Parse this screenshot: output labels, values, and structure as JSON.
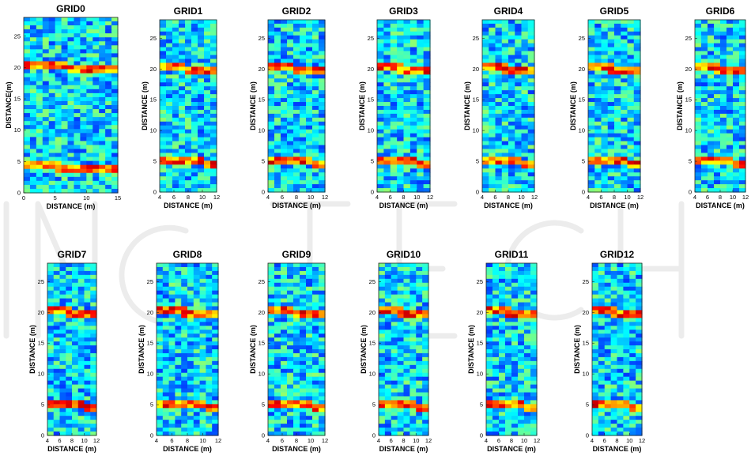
{
  "chart_data": [
    {
      "type": "heatmap",
      "title": "GRID0",
      "xlabel": "DISTANCE (m)",
      "ylabel": "DISTANCE(m)",
      "xlim": [
        0,
        15
      ],
      "ylim": [
        0,
        28
      ],
      "xticks": [
        "0",
        "5",
        "10",
        "15"
      ],
      "yticks": [
        "0",
        "5",
        "10",
        "15",
        "20",
        "25"
      ],
      "reflector_depths_m": [
        20,
        4
      ],
      "colormap": "jet"
    },
    {
      "type": "heatmap",
      "title": "GRID1",
      "xlabel": "DISTANCE (m)",
      "ylabel": "DISTANCE (m)",
      "xlim": [
        4,
        12
      ],
      "ylim": [
        0,
        28
      ],
      "xticks": [
        "4",
        "6",
        "8",
        "10",
        "12"
      ],
      "yticks": [
        "0",
        "5",
        "10",
        "15",
        "20",
        "25"
      ],
      "reflector_depths_m": [
        20,
        5
      ],
      "colormap": "jet"
    },
    {
      "type": "heatmap",
      "title": "GRID2",
      "xlabel": "DISTANCE (m)",
      "ylabel": "DISTANCE (m)",
      "xlim": [
        4,
        12
      ],
      "ylim": [
        0,
        28
      ],
      "xticks": [
        "4",
        "6",
        "8",
        "10",
        "12"
      ],
      "yticks": [
        "0",
        "5",
        "10",
        "15",
        "20",
        "25"
      ],
      "reflector_depths_m": [
        20,
        5
      ],
      "colormap": "jet"
    },
    {
      "type": "heatmap",
      "title": "GRID3",
      "xlabel": "DISTANCE (m)",
      "ylabel": "DISTANCE (m)",
      "xlim": [
        4,
        12
      ],
      "ylim": [
        0,
        28
      ],
      "xticks": [
        "4",
        "6",
        "8",
        "10",
        "12"
      ],
      "yticks": [
        "0",
        "5",
        "10",
        "15",
        "20",
        "25"
      ],
      "reflector_depths_m": [
        20,
        5
      ],
      "colormap": "jet"
    },
    {
      "type": "heatmap",
      "title": "GRID4",
      "xlabel": "DISTANCE (m)",
      "ylabel": "DISTANCE (m)",
      "xlim": [
        4,
        12
      ],
      "ylim": [
        0,
        28
      ],
      "xticks": [
        "4",
        "6",
        "8",
        "10",
        "12"
      ],
      "yticks": [
        "0",
        "5",
        "10",
        "15",
        "20",
        "25"
      ],
      "reflector_depths_m": [
        20,
        5
      ],
      "colormap": "jet"
    },
    {
      "type": "heatmap",
      "title": "GRID5",
      "xlabel": "DISTANCE (m)",
      "ylabel": "DISTANCE (m)",
      "xlim": [
        4,
        12
      ],
      "ylim": [
        0,
        28
      ],
      "xticks": [
        "4",
        "6",
        "8",
        "10",
        "12"
      ],
      "yticks": [
        "0",
        "5",
        "10",
        "15",
        "20",
        "25"
      ],
      "reflector_depths_m": [
        20,
        5
      ],
      "colormap": "jet"
    },
    {
      "type": "heatmap",
      "title": "GRID6",
      "xlabel": "DISTANCE (m)",
      "ylabel": "DISTANCE (m)",
      "xlim": [
        4,
        12
      ],
      "ylim": [
        0,
        28
      ],
      "xticks": [
        "4",
        "6",
        "8",
        "10",
        "12"
      ],
      "yticks": [
        "0",
        "5",
        "10",
        "15",
        "20",
        "25"
      ],
      "reflector_depths_m": [
        20,
        5
      ],
      "colormap": "jet"
    },
    {
      "type": "heatmap",
      "title": "GRID7",
      "xlabel": "DISTANCE (m)",
      "ylabel": "DISTANCE (m)",
      "xlim": [
        4,
        12
      ],
      "ylim": [
        0,
        28
      ],
      "xticks": [
        "4",
        "6",
        "8",
        "10",
        "12"
      ],
      "yticks": [
        "0",
        "5",
        "10",
        "15",
        "20",
        "25"
      ],
      "reflector_depths_m": [
        20,
        5
      ],
      "colormap": "jet"
    },
    {
      "type": "heatmap",
      "title": "GRID8",
      "xlabel": "DISTANCE (m)",
      "ylabel": "DISTANCE (m)",
      "xlim": [
        4,
        12
      ],
      "ylim": [
        0,
        28
      ],
      "xticks": [
        "4",
        "6",
        "8",
        "10",
        "12"
      ],
      "yticks": [
        "0",
        "5",
        "10",
        "15",
        "20",
        "25"
      ],
      "reflector_depths_m": [
        20,
        5
      ],
      "colormap": "jet"
    },
    {
      "type": "heatmap",
      "title": "GRID9",
      "xlabel": "DISTANCE (m)",
      "ylabel": "DISTANCE (m)",
      "xlim": [
        4,
        12
      ],
      "ylim": [
        0,
        28
      ],
      "xticks": [
        "4",
        "6",
        "8",
        "10",
        "12"
      ],
      "yticks": [
        "0",
        "5",
        "10",
        "15",
        "20",
        "25"
      ],
      "reflector_depths_m": [
        20,
        5
      ],
      "colormap": "jet"
    },
    {
      "type": "heatmap",
      "title": "GRID10",
      "xlabel": "DISTANCE (m)",
      "ylabel": "DISTANCE (m)",
      "xlim": [
        4,
        12
      ],
      "ylim": [
        0,
        28
      ],
      "xticks": [
        "4",
        "6",
        "8",
        "10",
        "12"
      ],
      "yticks": [
        "0",
        "5",
        "10",
        "15",
        "20",
        "25"
      ],
      "reflector_depths_m": [
        20,
        5
      ],
      "colormap": "jet"
    },
    {
      "type": "heatmap",
      "title": "GRID11",
      "xlabel": "DISTANCE (m)",
      "ylabel": "DISTANCE (m)",
      "xlim": [
        4,
        12
      ],
      "ylim": [
        0,
        28
      ],
      "xticks": [
        "4",
        "6",
        "8",
        "10",
        "12"
      ],
      "yticks": [
        "0",
        "5",
        "10",
        "15",
        "20",
        "25"
      ],
      "reflector_depths_m": [
        20,
        5
      ],
      "colormap": "jet"
    },
    {
      "type": "heatmap",
      "title": "GRID12",
      "xlabel": "DISTANCE (m)",
      "ylabel": "DISTANCE (m)",
      "xlim": [
        4,
        12
      ],
      "ylim": [
        0,
        28
      ],
      "xticks": [
        "4",
        "6",
        "8",
        "10",
        "12"
      ],
      "yticks": [
        "0",
        "5",
        "10",
        "15",
        "20",
        "25"
      ],
      "reflector_depths_m": [
        20,
        5
      ],
      "colormap": "jet"
    }
  ]
}
